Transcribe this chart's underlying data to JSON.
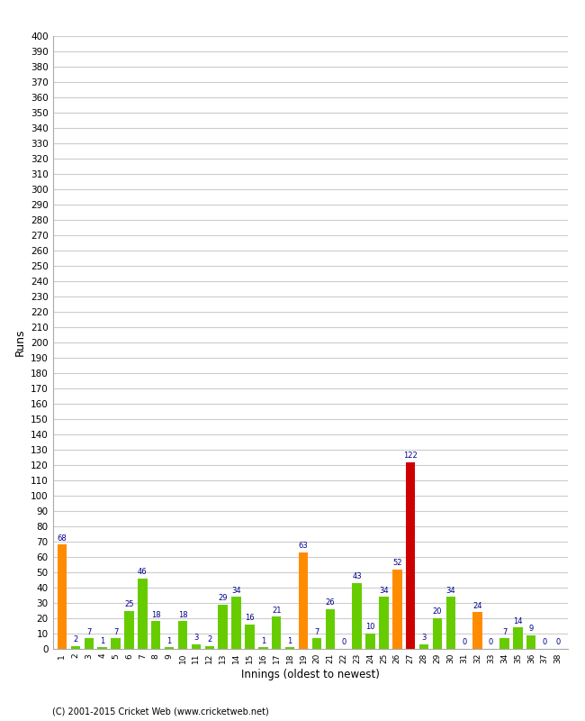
{
  "innings": [
    1,
    2,
    3,
    4,
    5,
    6,
    7,
    8,
    9,
    10,
    11,
    12,
    13,
    14,
    15,
    16,
    17,
    18,
    19,
    20,
    21,
    22,
    23,
    24,
    25,
    26,
    27,
    28,
    29,
    30,
    31,
    32,
    33,
    34,
    35,
    36,
    37,
    38
  ],
  "values": [
    68,
    2,
    7,
    1,
    7,
    25,
    46,
    18,
    1,
    18,
    3,
    2,
    29,
    34,
    16,
    1,
    21,
    1,
    63,
    7,
    26,
    0,
    43,
    10,
    34,
    52,
    122,
    3,
    20,
    34,
    0,
    24,
    0,
    7,
    14,
    9,
    0,
    0
  ],
  "colors": [
    "#ff8c00",
    "#66cc00",
    "#66cc00",
    "#66cc00",
    "#66cc00",
    "#66cc00",
    "#66cc00",
    "#66cc00",
    "#66cc00",
    "#66cc00",
    "#66cc00",
    "#66cc00",
    "#66cc00",
    "#66cc00",
    "#66cc00",
    "#66cc00",
    "#66cc00",
    "#66cc00",
    "#ff8c00",
    "#66cc00",
    "#66cc00",
    "#66cc00",
    "#66cc00",
    "#66cc00",
    "#66cc00",
    "#ff8c00",
    "#cc0000",
    "#66cc00",
    "#66cc00",
    "#66cc00",
    "#66cc00",
    "#ff8c00",
    "#66cc00",
    "#66cc00",
    "#66cc00",
    "#66cc00",
    "#66cc00",
    "#66cc00"
  ],
  "xlabel": "Innings (oldest to newest)",
  "ylabel": "Runs",
  "ylim": [
    0,
    400
  ],
  "ytick_step": 10,
  "label_color": "#00008b",
  "bg_color": "#ffffff",
  "grid_color": "#cccccc",
  "footer": "(C) 2001-2015 Cricket Web (www.cricketweb.net)"
}
